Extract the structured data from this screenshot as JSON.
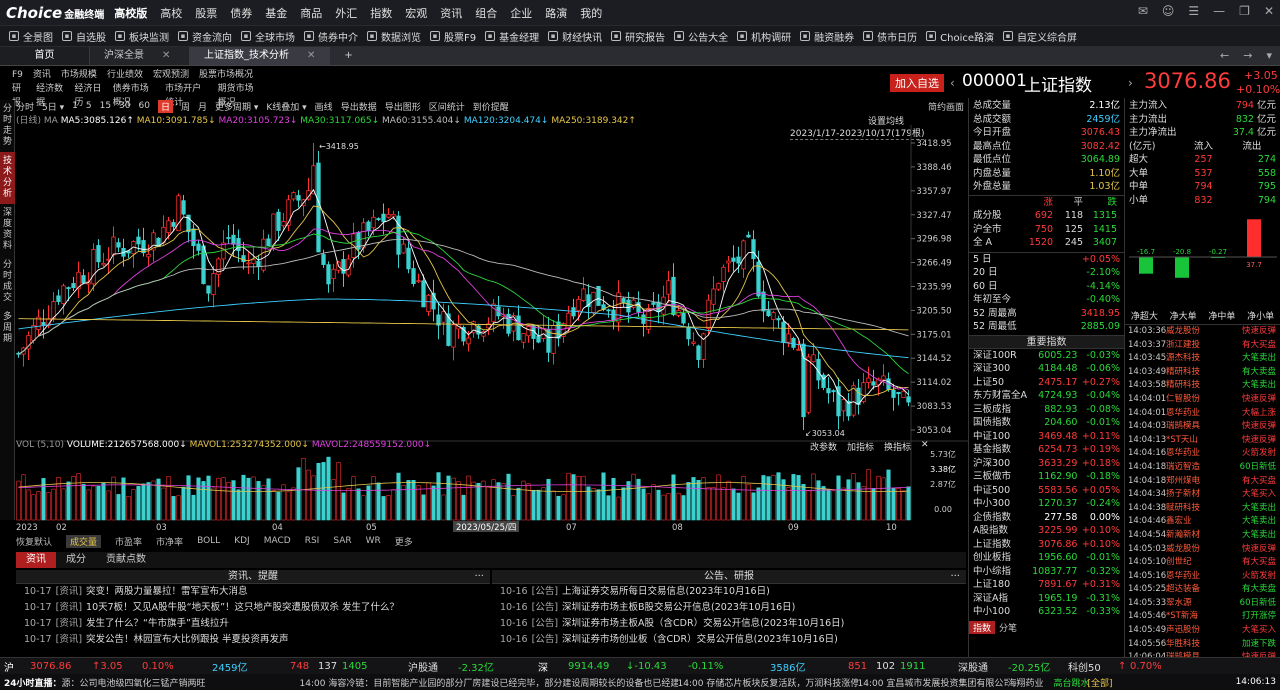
{
  "app": {
    "logo": "Choice",
    "logo_sub": "金融终端",
    "menu": [
      "高校版",
      "高校",
      "股票",
      "债券",
      "基金",
      "商品",
      "外汇",
      "指数",
      "宏观",
      "资讯",
      "组合",
      "企业",
      "路演",
      "我的"
    ]
  },
  "toolbar": [
    "全景图",
    "自选股",
    "板块监测",
    "资金流向",
    "全球市场",
    "债券中介",
    "数据浏览",
    "股票F9",
    "基金经理",
    "财经快讯",
    "研究报告",
    "公告大全",
    "机构调研",
    "融资融券",
    "债市日历",
    "Choice路演",
    "自定义综合屏"
  ],
  "tabs": {
    "home": "首页",
    "t1": "沪深全景",
    "t2": "上证指数_技术分析",
    "add": "+"
  },
  "leftnav": {
    "row1": [
      "F9",
      "资讯",
      "市场规模",
      "行业绩效",
      "宏观预测",
      "股票市场概况"
    ],
    "row2": [
      "研报",
      "经济数据",
      "经济日历",
      "债券市场概况",
      "市场开户统计",
      "期货市场概况"
    ]
  },
  "sidebar_tabs": [
    "分时走势",
    "技术分析",
    "深度资料",
    "分时成交",
    "多周期"
  ],
  "chart_toolbar": [
    "分时",
    "5日",
    "1",
    "5",
    "15",
    "30",
    "60",
    "日",
    "周",
    "月",
    "更多周期",
    "K线叠加",
    "画线",
    "导出数据",
    "导出图形",
    "区间统计",
    "到价提醒"
  ],
  "chart_toolbar_right": "简约画面",
  "ma_bar": {
    "prefix": "(日线)",
    "ma": "MA",
    "ma5": "MA5:3085.126↑",
    "ma10": "MA10:3091.785↓",
    "ma20": "MA20:3105.723↓",
    "ma30": "MA30:3117.065↓",
    "ma60": "MA60:3155.404↓",
    "ma120": "MA120:3204.474↓",
    "ma250": "MA250:3189.342↑",
    "settings": "设置均线",
    "range": "2023/1/17-2023/10/17(179根)"
  },
  "price_axis": [
    "3418.95",
    "3388.46",
    "3357.97",
    "3327.47",
    "3296.98",
    "3266.49",
    "3235.99",
    "3205.50",
    "3175.01",
    "3144.52",
    "3114.02",
    "3083.53",
    "3053.04"
  ],
  "annot": {
    "high": "3418.95",
    "low": "3053.04"
  },
  "vol_bar": {
    "vol": "VOL (5,10)",
    "volume": "VOLUME:212657568.000↓",
    "mavol1": "MAVOL1:253274352.000↓",
    "mavol2": "MAVOL2:248559152.000↓",
    "btns": [
      "改参数",
      "加指标",
      "换指标"
    ],
    "close": "✕"
  },
  "vol_axis": [
    "5.73亿",
    "3.38亿",
    "2.87亿",
    "0.00"
  ],
  "date_axis": {
    "labels": [
      "2023",
      "02",
      "03",
      "04",
      "05",
      "2023/05/25/四",
      "07",
      "08",
      "09",
      "10"
    ]
  },
  "ind_tabs": [
    "恢复默认",
    "成交量",
    "市盈率",
    "市净率",
    "BOLL",
    "KDJ",
    "MACD",
    "RSI",
    "SAR",
    "WR",
    "更多"
  ],
  "sub_tabs": [
    "资讯",
    "成分",
    "贡献点数"
  ],
  "news": {
    "title": "资讯、提醒",
    "more": "···",
    "items": [
      {
        "d": "10-17",
        "t": "[资讯]",
        "s": "突变！两股力量暴拉！雷军宣布大消息"
      },
      {
        "d": "10-17",
        "t": "[资讯]",
        "s": "10天7板！又见A股牛股“地天板”！这只地产股突遭股债双杀 发生了什么？"
      },
      {
        "d": "10-17",
        "t": "[资讯]",
        "s": "发生了什么？“牛市旗手”直线拉升"
      },
      {
        "d": "10-17",
        "t": "[资讯]",
        "s": "突发公告！林园宣布大比例跟投 半夏投资再发声"
      }
    ]
  },
  "notices": {
    "title": "公告、研报",
    "more": "···",
    "items": [
      {
        "d": "10-16",
        "t": "[公告]",
        "s": "上海证券交易所每日交易信息(2023年10月16日)"
      },
      {
        "d": "10-16",
        "t": "[公告]",
        "s": "深圳证券市场主板B股交易公开信息(2023年10月16日)"
      },
      {
        "d": "10-16",
        "t": "[公告]",
        "s": "深圳证券市场主板A股（含CDR）交易公开信息(2023年10月16日)"
      },
      {
        "d": "10-16",
        "t": "[公告]",
        "s": "深圳证券市场创业板（含CDR）交易公开信息(2023年10月16日)"
      }
    ]
  },
  "quote": {
    "add_btn": "加入自选",
    "code": "000001",
    "name": "上证指数",
    "price": "3076.86",
    "change": "+3.05",
    "pct": "+0.10%"
  },
  "stats": [
    {
      "k": "总成交量",
      "v": "2.13亿",
      "c": "white"
    },
    {
      "k": "总成交额",
      "v": "2459亿",
      "c": "cyan"
    },
    {
      "k": "今日开盘",
      "v": "3076.43",
      "c": "red"
    },
    {
      "k": "最高点位",
      "v": "3082.42",
      "c": "red"
    },
    {
      "k": "最低点位",
      "v": "3064.89",
      "c": "green"
    },
    {
      "k": "内盘总量",
      "v": "1.10亿",
      "c": "yellow"
    },
    {
      "k": "外盘总量",
      "v": "1.03亿",
      "c": "yellow"
    }
  ],
  "breadth": {
    "hdr": [
      "涨",
      "平",
      "跌"
    ],
    "rows": [
      {
        "k": "成分股",
        "u": "692",
        "f": "118",
        "d": "1315"
      },
      {
        "k": "沪全市",
        "u": "750",
        "f": "125",
        "d": "1415"
      },
      {
        "k": "全 A",
        "u": "1520",
        "f": "245",
        "d": "3407"
      }
    ]
  },
  "perf": [
    {
      "k": "5 日",
      "v": "+0.05%",
      "c": "red"
    },
    {
      "k": "20 日",
      "v": "-2.10%",
      "c": "green"
    },
    {
      "k": "60 日",
      "v": "-4.14%",
      "c": "green"
    },
    {
      "k": "年初至今",
      "v": "-0.40%",
      "c": "green"
    },
    {
      "k": "52 周最高",
      "v": "3418.95",
      "c": "red"
    },
    {
      "k": "52 周最低",
      "v": "2885.09",
      "c": "green"
    }
  ],
  "idx_title": "重要指数",
  "indices": [
    {
      "n": "深证100R",
      "p": "6005.23",
      "c": "-0.03%",
      "col": "green"
    },
    {
      "n": "深证300",
      "p": "4184.48",
      "c": "-0.06%",
      "col": "green"
    },
    {
      "n": "上证50",
      "p": "2475.17",
      "c": "+0.27%",
      "col": "red"
    },
    {
      "n": "东方财富全A",
      "p": "4724.93",
      "c": "-0.04%",
      "col": "green"
    },
    {
      "n": "三板成指",
      "p": "882.93",
      "c": "-0.08%",
      "col": "green"
    },
    {
      "n": "国债指数",
      "p": "204.60",
      "c": "-0.01%",
      "col": "green"
    },
    {
      "n": "中证100",
      "p": "3469.48",
      "c": "+0.11%",
      "col": "red"
    },
    {
      "n": "基金指数",
      "p": "6254.73",
      "c": "+0.19%",
      "col": "red"
    },
    {
      "n": "沪深300",
      "p": "3633.29",
      "c": "+0.18%",
      "col": "red"
    },
    {
      "n": "三板做市",
      "p": "1162.90",
      "c": "-0.18%",
      "col": "green"
    },
    {
      "n": "中证500",
      "p": "5583.56",
      "c": "+0.05%",
      "col": "red"
    },
    {
      "n": "中小300",
      "p": "1270.37",
      "c": "-0.24%",
      "col": "green"
    },
    {
      "n": "企债指数",
      "p": "277.58",
      "c": "0.00%",
      "col": "white"
    },
    {
      "n": "A股指数",
      "p": "3225.99",
      "c": "+0.10%",
      "col": "red"
    },
    {
      "n": "上证指数",
      "p": "3076.86",
      "c": "+0.10%",
      "col": "red"
    },
    {
      "n": "创业板指",
      "p": "1956.60",
      "c": "-0.01%",
      "col": "green"
    },
    {
      "n": "中小综指",
      "p": "10837.77",
      "c": "-0.32%",
      "col": "green"
    },
    {
      "n": "上证180",
      "p": "7891.67",
      "c": "+0.31%",
      "col": "red"
    },
    {
      "n": "深证A指",
      "p": "1965.19",
      "c": "-0.31%",
      "col": "green"
    },
    {
      "n": "中小100",
      "p": "6323.52",
      "c": "-0.33%",
      "col": "green"
    }
  ],
  "idx_bottom": [
    "指数",
    "分笔"
  ],
  "flow": [
    {
      "k": "主力流入",
      "v": "794",
      "u": "亿元",
      "c": "red"
    },
    {
      "k": "主力流出",
      "v": "832",
      "u": "亿元",
      "c": "green"
    },
    {
      "k": "主力净流出",
      "v": "37.4",
      "u": "亿元",
      "c": "green"
    }
  ],
  "flow_table": {
    "hdr": [
      "(亿元)",
      "流入",
      "流出"
    ],
    "rows": [
      {
        "k": "超大",
        "i": "257",
        "o": "274"
      },
      {
        "k": "大单",
        "i": "537",
        "o": "558"
      },
      {
        "k": "中单",
        "i": "794",
        "o": "795"
      },
      {
        "k": "小单",
        "i": "832",
        "o": "794"
      }
    ]
  },
  "flow_chart": {
    "bars": [
      {
        "label": "净超大",
        "value": -16.7
      },
      {
        "label": "净大单",
        "value": -20.8
      },
      {
        "label": "净中单",
        "value": -0.27
      },
      {
        "label": "净小单",
        "value": 37.7
      }
    ],
    "values_text": [
      "-16.7",
      "-20.8",
      "-0.27",
      "37.7"
    ]
  },
  "ticks": [
    {
      "t": "14:03:36",
      "n": "威龙股份",
      "a": "快速反弹",
      "c": "red"
    },
    {
      "t": "14:03:37",
      "n": "浙江建投",
      "a": "有大买盘",
      "c": "red"
    },
    {
      "t": "14:03:45",
      "n": "源杰科技",
      "a": "大笔卖出",
      "c": "green"
    },
    {
      "t": "14:03:49",
      "n": "精研科技",
      "a": "有大卖盘",
      "c": "green"
    },
    {
      "t": "14:03:58",
      "n": "精研科技",
      "a": "大笔卖出",
      "c": "green"
    },
    {
      "t": "14:04:01",
      "n": "仁智股份",
      "a": "快速反弹",
      "c": "red"
    },
    {
      "t": "14:04:01",
      "n": "恩华药业",
      "a": "大幅上涨",
      "c": "red"
    },
    {
      "t": "14:04:03",
      "n": "瑞鹄模具",
      "a": "快速反弹",
      "c": "red"
    },
    {
      "t": "14:04:13",
      "n": "*ST天山",
      "a": "快速反弹",
      "c": "red"
    },
    {
      "t": "14:04:16",
      "n": "恩华药业",
      "a": "火箭发射",
      "c": "red"
    },
    {
      "t": "14:04:18",
      "n": "瑞迈智造",
      "a": "60日新低",
      "c": "green"
    },
    {
      "t": "14:04:18",
      "n": "郑州煤电",
      "a": "有大买盘",
      "c": "red"
    },
    {
      "t": "14:04:34",
      "n": "扬子新材",
      "a": "大笔买入",
      "c": "red"
    },
    {
      "t": "14:04:38",
      "n": "赋研科技",
      "a": "大笔卖出",
      "c": "green"
    },
    {
      "t": "14:04:46",
      "n": "鑫宏业",
      "a": "大笔卖出",
      "c": "green"
    },
    {
      "t": "14:04:54",
      "n": "新瀚新材",
      "a": "大笔卖出",
      "c": "green"
    },
    {
      "t": "14:05:03",
      "n": "威龙股份",
      "a": "快速反弹",
      "c": "red"
    },
    {
      "t": "14:05:10",
      "n": "创世纪",
      "a": "有大买盘",
      "c": "red"
    },
    {
      "t": "14:05:16",
      "n": "恩华药业",
      "a": "火箭发射",
      "c": "red"
    },
    {
      "t": "14:05:25",
      "n": "超达装备",
      "a": "有大卖盘",
      "c": "green"
    },
    {
      "t": "14:05:33",
      "n": "翠水源",
      "a": "60日新低",
      "c": "green"
    },
    {
      "t": "14:05:46",
      "n": "*ST新海",
      "a": "打开涨停",
      "c": "green"
    },
    {
      "t": "14:05:49",
      "n": "声迅股份",
      "a": "大笔买入",
      "c": "red"
    },
    {
      "t": "14:05:56",
      "n": "华胜科技",
      "a": "加速下跌",
      "c": "green"
    },
    {
      "t": "14:06:04",
      "n": "瑞鹄模具",
      "a": "快速反弹",
      "c": "red"
    },
    {
      "t": "14:06:22",
      "n": "海翔药业",
      "a": "高台跳水",
      "c": "green"
    }
  ],
  "statusbar": {
    "sh": "沪",
    "sh_p": "3076.86",
    "sh_c": "↑3.05",
    "sh_pct": "0.10%",
    "sh_amt": "2459亿",
    "sh_u": "748",
    "sh_f": "137",
    "sh_d": "1405",
    "hgt": "沪股通",
    "hgt_v": "-2.32亿",
    "sz": "深",
    "sz_p": "9914.49",
    "sz_c": "↓-10.43",
    "sz_pct": "-0.11%",
    "sz_amt": "3586亿",
    "sz_u": "851",
    "sz_f": "102",
    "sz_d": "1911",
    "sgt": "深股通",
    "sgt_v": "-20.25亿",
    "kc": "科创50",
    "kc_c": "↑",
    "kc_pct": "0.70%"
  },
  "tickerbar": {
    "live": "24小时直播：",
    "items": [
      "源：公司电池级四氧化三锰产销两旺",
      "14:00 海容冷链：目前智能产业园的部分厂房建设已经完毕，部分建设周期较长的设备也已经建成",
      "14:00 存储芯片板块反复活跃，万润科技涨停",
      "14:00 宜昌城市发展投资集团有限公司",
      "海翔药业",
      "高台跳水"
    ],
    "full": "[全部]",
    "time": "14:06:13"
  }
}
